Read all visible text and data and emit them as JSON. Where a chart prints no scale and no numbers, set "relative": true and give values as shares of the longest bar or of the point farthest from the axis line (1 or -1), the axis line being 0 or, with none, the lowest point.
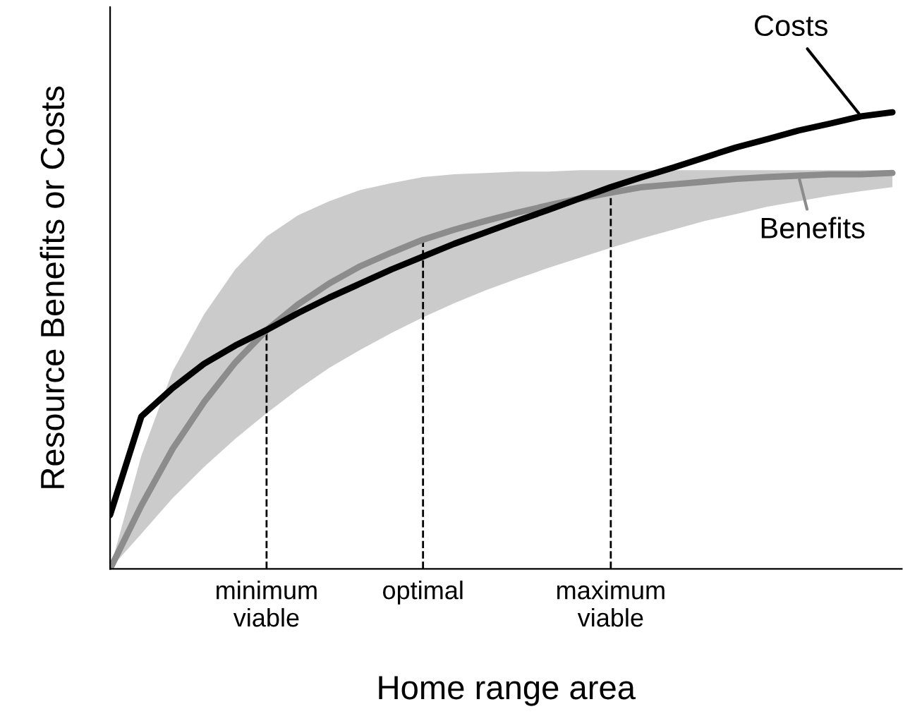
{
  "chart_data": {
    "type": "line",
    "relative": true,
    "xlabel": "Home range area",
    "ylabel": "Resource Benefits or Costs",
    "categories": [
      null,
      null,
      null,
      null,
      null,
      "minimum\nviable",
      null,
      null,
      null,
      null,
      "optimal",
      null,
      null,
      null,
      null,
      null,
      "maximum\nviable",
      null,
      null,
      null,
      null,
      null,
      null,
      null,
      null,
      null
    ],
    "series": [
      {
        "name": "Costs",
        "color": "#000000",
        "values": [
          0.118,
          0.334,
          0.396,
          0.449,
          0.489,
          0.523,
          0.56,
          0.594,
          0.625,
          0.656,
          0.684,
          0.712,
          0.737,
          0.762,
          0.786,
          0.811,
          0.836,
          0.858,
          0.879,
          0.901,
          0.923,
          0.941,
          0.96,
          0.975,
          0.991,
          1.0
        ]
      },
      {
        "name": "Benefits",
        "color": "#8c8c8c",
        "values": [
          0.0,
          0.139,
          0.263,
          0.365,
          0.452,
          0.523,
          0.579,
          0.625,
          0.663,
          0.693,
          0.721,
          0.743,
          0.762,
          0.78,
          0.796,
          0.811,
          0.824,
          0.836,
          0.842,
          0.848,
          0.854,
          0.858,
          0.861,
          0.864,
          0.864,
          0.867
        ],
        "lower": [
          0.0,
          0.077,
          0.155,
          0.223,
          0.285,
          0.341,
          0.393,
          0.44,
          0.48,
          0.517,
          0.551,
          0.582,
          0.61,
          0.635,
          0.659,
          0.681,
          0.703,
          0.724,
          0.743,
          0.762,
          0.777,
          0.793,
          0.805,
          0.817,
          0.827,
          0.836
        ],
        "upper": [
          0.0,
          0.248,
          0.433,
          0.557,
          0.656,
          0.728,
          0.774,
          0.805,
          0.83,
          0.845,
          0.858,
          0.864,
          0.867,
          0.87,
          0.87,
          0.873,
          0.873,
          0.873,
          0.873,
          0.873,
          0.873,
          0.873,
          0.873,
          0.873,
          0.873,
          0.873
        ]
      }
    ],
    "ref_lines": [
      {
        "axis": "x",
        "value": "minimum\nviable",
        "line_style": "dashed",
        "color": "#000000"
      },
      {
        "axis": "x",
        "value": "optimal",
        "line_style": "dashed",
        "color": "#000000"
      },
      {
        "axis": "x",
        "value": "maximum\nviable",
        "line_style": "dashed",
        "color": "#000000"
      }
    ],
    "grid": false,
    "marker": "none",
    "line_style": "solid"
  }
}
